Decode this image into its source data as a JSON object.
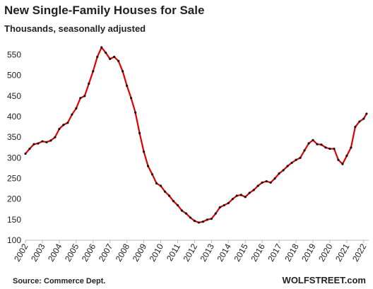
{
  "chart_data": {
    "type": "line",
    "title": "New Single-Family Houses for Sale",
    "subtitle": "Thousands, seasonally adjusted",
    "source": "Source: Commerce Dept.",
    "brand": "WOLFSTREET.com",
    "x": [
      2002.0,
      2002.25,
      2002.5,
      2002.75,
      2003.0,
      2003.25,
      2003.5,
      2003.75,
      2004.0,
      2004.25,
      2004.5,
      2004.75,
      2005.0,
      2005.25,
      2005.5,
      2005.75,
      2006.0,
      2006.25,
      2006.5,
      2006.75,
      2007.0,
      2007.25,
      2007.5,
      2007.75,
      2008.0,
      2008.25,
      2008.5,
      2008.75,
      2009.0,
      2009.25,
      2009.5,
      2009.75,
      2010.0,
      2010.25,
      2010.5,
      2010.75,
      2011.0,
      2011.25,
      2011.5,
      2011.75,
      2012.0,
      2012.25,
      2012.5,
      2012.75,
      2013.0,
      2013.25,
      2013.5,
      2013.75,
      2014.0,
      2014.25,
      2014.5,
      2014.75,
      2015.0,
      2015.25,
      2015.5,
      2015.75,
      2016.0,
      2016.25,
      2016.5,
      2016.75,
      2017.0,
      2017.25,
      2017.5,
      2017.75,
      2018.0,
      2018.25,
      2018.5,
      2018.75,
      2019.0,
      2019.25,
      2019.5,
      2019.75,
      2020.0,
      2020.25,
      2020.5,
      2020.75,
      2021.0,
      2021.25,
      2021.5,
      2021.75,
      2022.0,
      2022.17
    ],
    "series": [
      {
        "name": "New Single-Family Houses for Sale",
        "color": "#e00000",
        "marker_color": "#111111",
        "values": [
          310,
          322,
          333,
          335,
          340,
          338,
          342,
          350,
          370,
          380,
          385,
          405,
          420,
          445,
          450,
          480,
          510,
          545,
          568,
          555,
          540,
          545,
          535,
          510,
          475,
          445,
          410,
          360,
          315,
          280,
          260,
          238,
          232,
          218,
          208,
          195,
          185,
          172,
          165,
          155,
          147,
          143,
          145,
          150,
          152,
          165,
          180,
          185,
          190,
          200,
          208,
          210,
          205,
          215,
          222,
          232,
          240,
          243,
          240,
          250,
          262,
          270,
          280,
          288,
          295,
          300,
          318,
          335,
          343,
          333,
          332,
          325,
          322,
          322,
          295,
          285,
          305,
          325,
          375,
          388,
          395,
          407
        ]
      }
    ],
    "xlim": [
      2002,
      2022.3
    ],
    "xticks": [
      2002,
      2003,
      2004,
      2005,
      2006,
      2007,
      2008,
      2009,
      2010,
      2011,
      2012,
      2013,
      2014,
      2015,
      2016,
      2017,
      2018,
      2019,
      2020,
      2021,
      2022
    ],
    "ylim": [
      100,
      575
    ],
    "yticks": [
      100,
      150,
      200,
      250,
      300,
      350,
      400,
      450,
      500,
      550
    ],
    "grid": false
  }
}
